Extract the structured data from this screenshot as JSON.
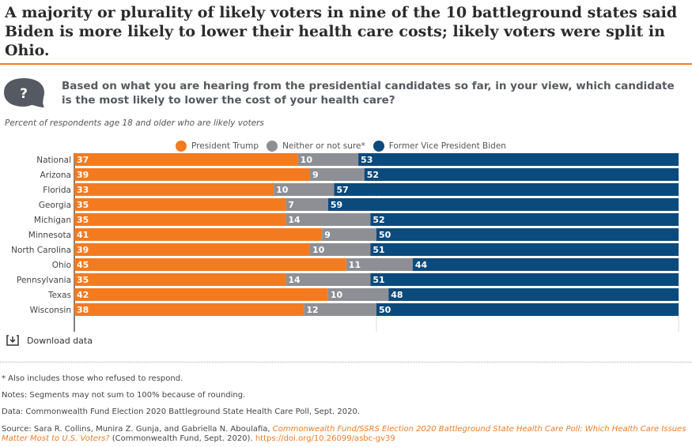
{
  "header": {
    "title": "A majority or plurality of likely voters in nine of the 10 battleground states said Biden is more likely to lower their health care costs; likely voters were split in Ohio.",
    "question": "Based on what you are hearing from the presidential candidates so far, in your view, which candidate is the most likely to lower the cost of your health care?",
    "question_icon": "question-bubble-icon",
    "question_mark": "?"
  },
  "chart_data": {
    "type": "bar",
    "orientation": "horizontal",
    "stacked": true,
    "subtitle": "Percent of respondents age 18 and older who are likely voters",
    "categories": [
      "National",
      "Arizona",
      "Florida",
      "Georgia",
      "Michigan",
      "Minnesota",
      "North Carolina",
      "Ohio",
      "Pennsylvania",
      "Texas",
      "Wisconsin"
    ],
    "series": [
      {
        "name": "President Trump",
        "color": "#f47a20",
        "values": [
          37,
          39,
          33,
          35,
          35,
          41,
          39,
          45,
          35,
          42,
          38
        ]
      },
      {
        "name": "Neither or not sure*",
        "color": "#8e8f94",
        "values": [
          10,
          9,
          10,
          7,
          14,
          9,
          10,
          11,
          14,
          10,
          12
        ]
      },
      {
        "name": "Former Vice President Biden",
        "color": "#0b4a7d",
        "values": [
          53,
          52,
          57,
          59,
          52,
          50,
          51,
          44,
          51,
          48,
          50
        ]
      }
    ],
    "xlim": [
      0,
      100
    ],
    "xticks": [
      "0",
      "50",
      "100"
    ],
    "legend": "top",
    "grid": true
  },
  "download": {
    "label": "Download data",
    "icon": "download-icon"
  },
  "footer": {
    "footnote": "* Also includes those who refused to respond.",
    "notes": "Notes: Segments may not sum to 100% because of rounding.",
    "data": "Data: Commonwealth Fund Election 2020 Battleground State Health Care Poll, Sept. 2020.",
    "source_prefix": "Source: Sara R. Collins, Munira Z. Gunja, and Gabriella N. Aboulafia, ",
    "source_link": "Commonwealth Fund/SSRS Election 2020 Battleground State Health Care Poll: Which Health Care Issues Matter Most to U.S. Voters?",
    "source_suffix": " (Commonwealth Fund, Sept. 2020). ",
    "doi": "https://doi.org/10.26099/asbc-gv39"
  }
}
